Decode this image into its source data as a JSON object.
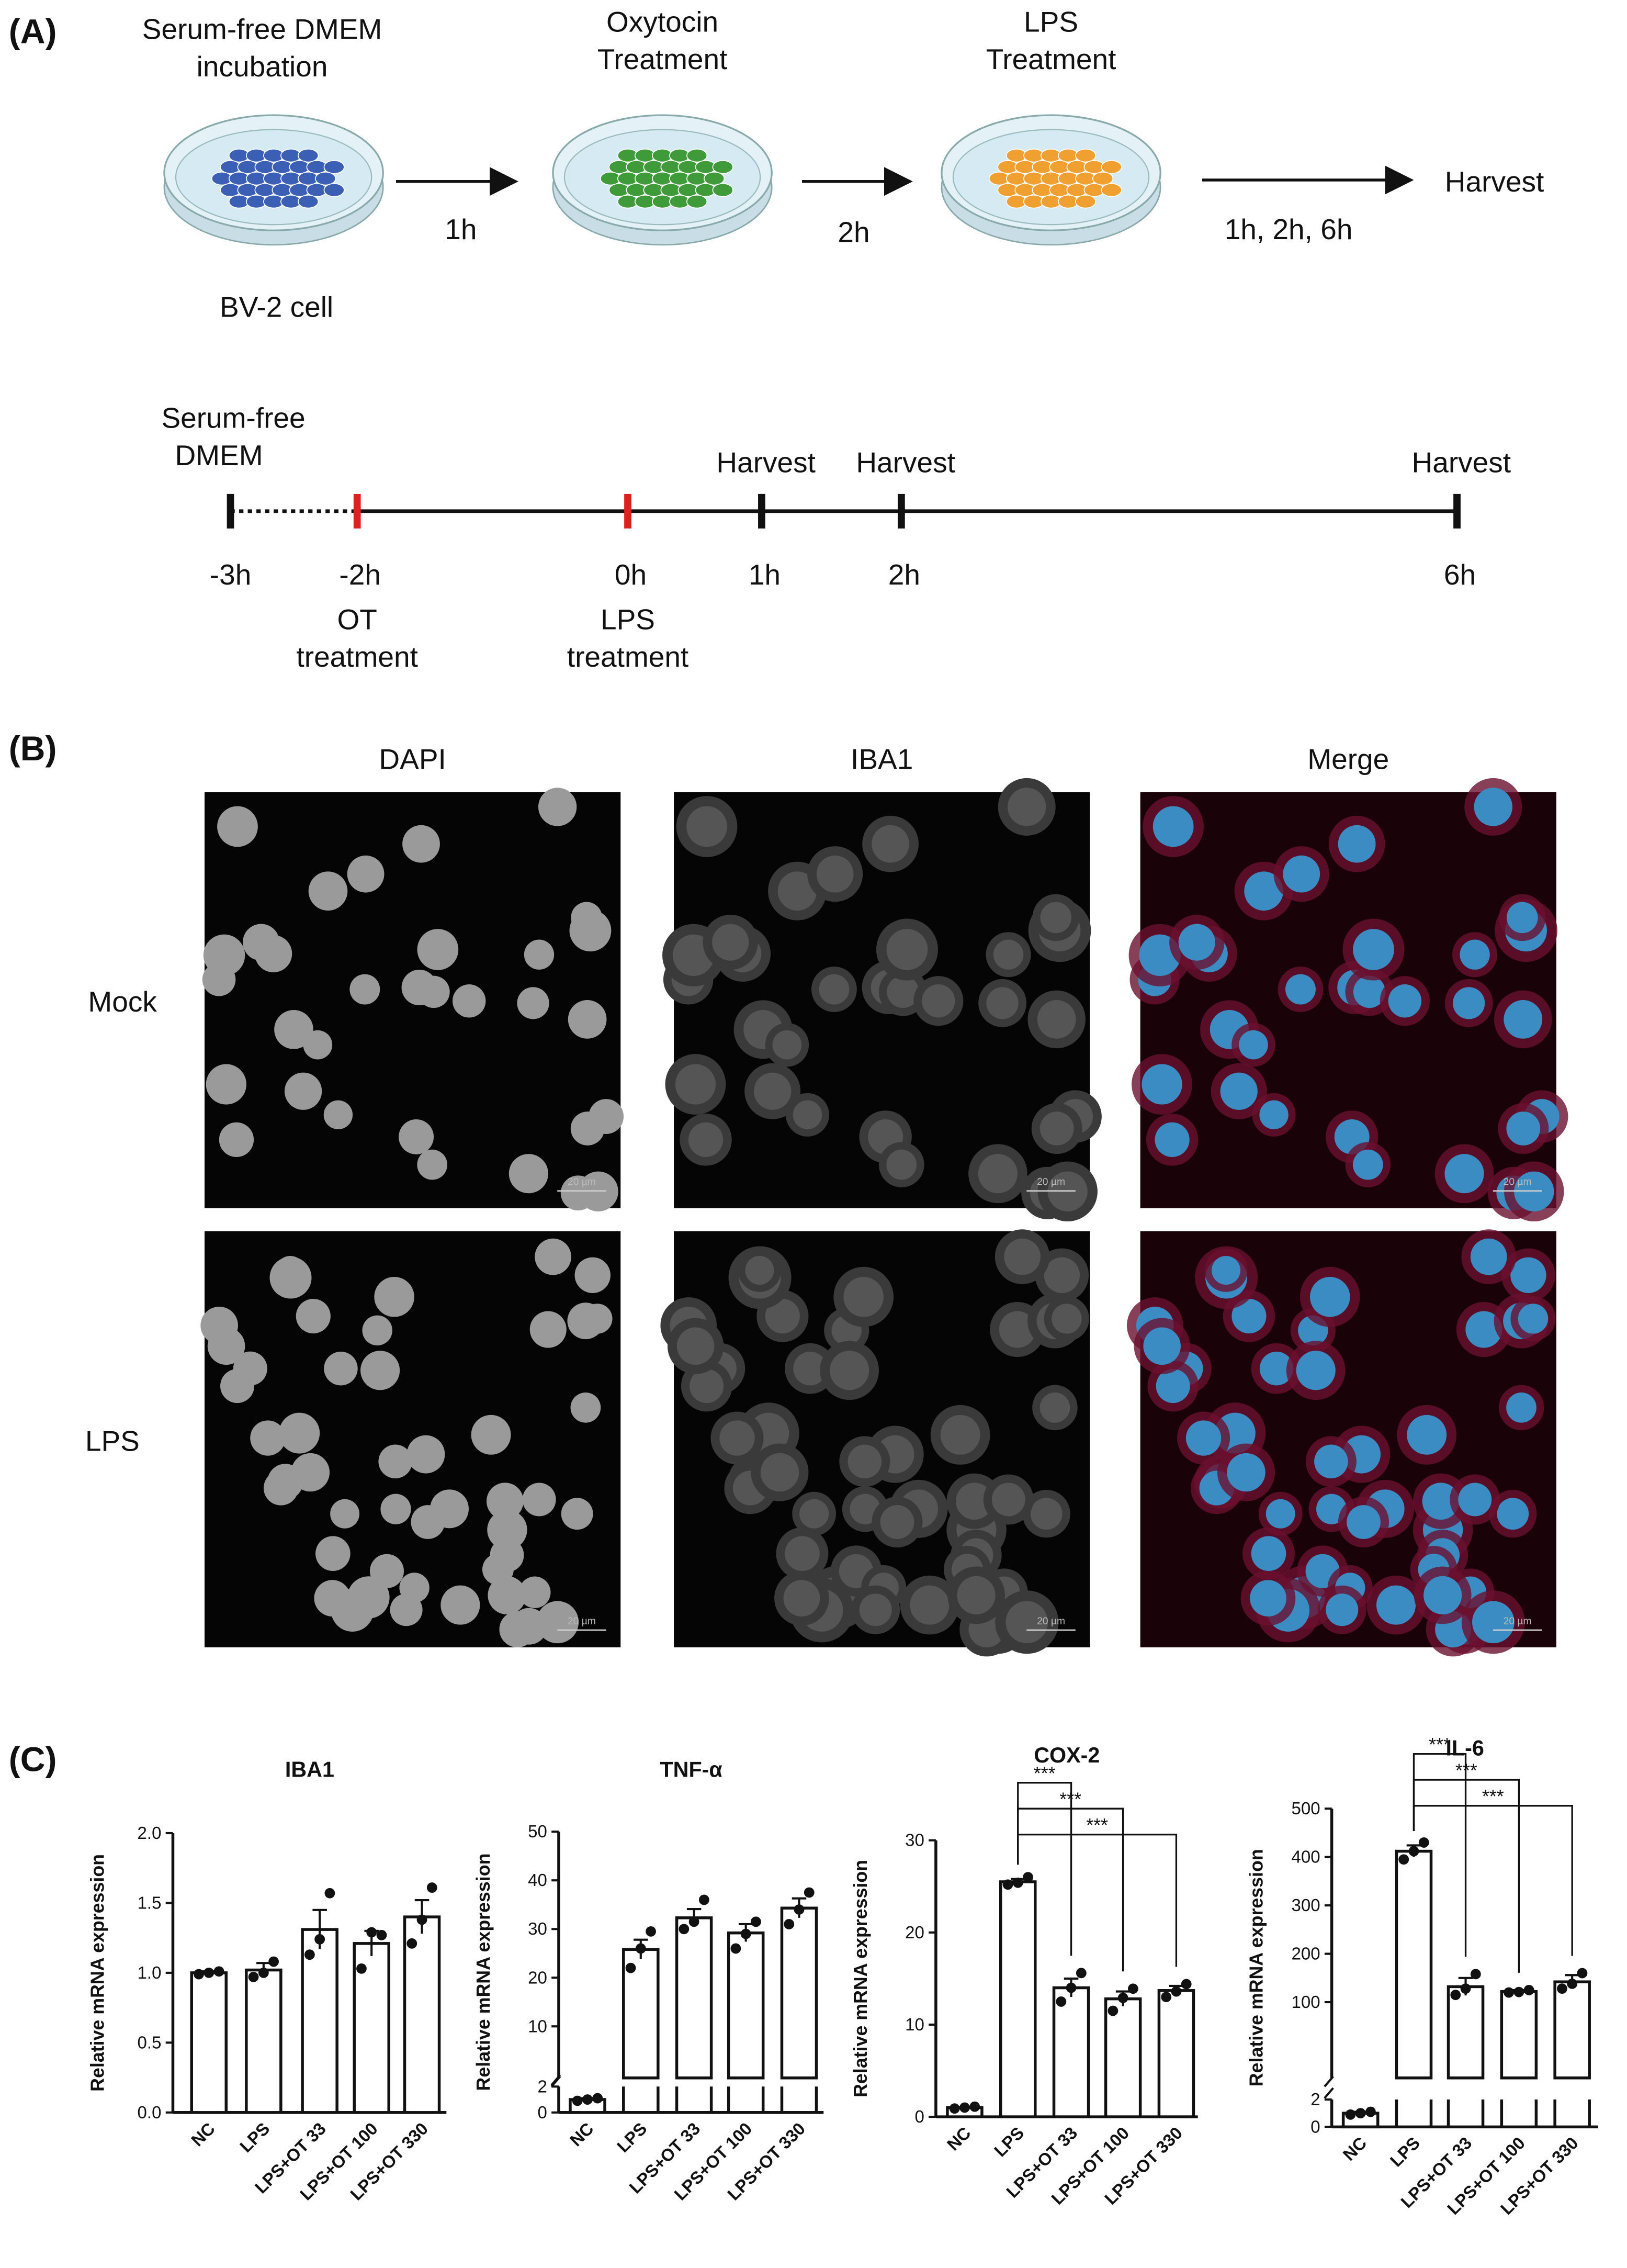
{
  "panel_a": {
    "label": "(A)",
    "steps": [
      {
        "lines": [
          "Serum-free DMEM",
          "incubation"
        ],
        "caption": "BV-2 cell",
        "color": "#3b5fb5"
      },
      {
        "lines": [
          "Oxytocin",
          "Treatment"
        ],
        "color": "#3f9a3a"
      },
      {
        "lines": [
          "LPS",
          "Treatment"
        ],
        "color": "#f0a030"
      }
    ],
    "arrows": [
      "1h",
      "2h",
      "1h, 2h, 6h"
    ],
    "end": "Harvest",
    "timeline": {
      "start": [
        "Serum-free",
        "DMEM"
      ],
      "ticks": [
        {
          "time": "-3h",
          "color": "#111111"
        },
        {
          "time": "-2h",
          "color": "#e02020",
          "below": [
            "OT",
            "treatment"
          ]
        },
        {
          "time": "0h",
          "color": "#e02020",
          "below": [
            "LPS",
            "treatment"
          ]
        },
        {
          "time": "1h",
          "color": "#111111",
          "above": "Harvest"
        },
        {
          "time": "2h",
          "color": "#111111",
          "above": "Harvest"
        },
        {
          "time": "6h",
          "color": "#111111",
          "above": "Harvest"
        }
      ]
    }
  },
  "panel_b": {
    "label": "(B)",
    "columns": [
      "DAPI",
      "IBA1",
      "Merge"
    ],
    "rows": [
      "Mock",
      "LPS"
    ],
    "scale_bar": "20 µm"
  },
  "panel_c": {
    "label": "(C)"
  },
  "chart_data": [
    {
      "type": "bar",
      "title": "IBA1",
      "ylabel": "Relative mRNA expression",
      "categories": [
        "NC",
        "LPS",
        "LPS+OT 33",
        "LPS+OT 100",
        "LPS+OT 330"
      ],
      "values": [
        1.0,
        1.02,
        1.31,
        1.21,
        1.4
      ],
      "errors": [
        0.01,
        0.05,
        0.14,
        0.09,
        0.12
      ],
      "points": [
        [
          0.99,
          1.0,
          1.01
        ],
        [
          0.97,
          1.0,
          1.08
        ],
        [
          1.13,
          1.24,
          1.57
        ],
        [
          1.03,
          1.29,
          1.27
        ],
        [
          1.21,
          1.38,
          1.61
        ]
      ],
      "ylim": [
        0,
        2
      ],
      "yticks": [
        {
          "value": 0,
          "label": "0.0"
        },
        {
          "value": 0.5,
          "label": "0.5"
        },
        {
          "value": 1,
          "label": "1.0"
        },
        {
          "value": 1.5,
          "label": "1.5"
        },
        {
          "value": 2,
          "label": "2.0"
        }
      ]
    },
    {
      "type": "bar",
      "title": "TNF-α",
      "ylabel": "Relative mRNA expression",
      "categories": [
        "NC",
        "LPS",
        "LPS+OT 33",
        "LPS+OT 100",
        "LPS+OT 330"
      ],
      "values": [
        1.0,
        25.8,
        32.3,
        29.2,
        34.3
      ],
      "errors": [
        0.1,
        2.0,
        1.8,
        1.8,
        2.0
      ],
      "points": [
        [
          0.9,
          1.0,
          1.1
        ],
        [
          22,
          26,
          29.5
        ],
        [
          30,
          31.5,
          36
        ],
        [
          26,
          29,
          31.5
        ],
        [
          31,
          34,
          37.5
        ]
      ],
      "ylim": [
        0,
        50
      ],
      "yticks": [
        10,
        20,
        30,
        40,
        50
      ],
      "lower_ylim": [
        0,
        2
      ],
      "lower_yticks": [
        0,
        2
      ]
    },
    {
      "type": "bar",
      "title": "COX-2",
      "ylabel": "Relative mRNA expression",
      "categories": [
        "NC",
        "LPS",
        "LPS+OT 33",
        "LPS+OT 100",
        "LPS+OT 330"
      ],
      "values": [
        1.0,
        25.5,
        14.0,
        12.8,
        13.7
      ],
      "errors": [
        0.05,
        0.3,
        1.0,
        0.8,
        0.5
      ],
      "points": [
        [
          0.9,
          1.0,
          1.1
        ],
        [
          25.2,
          25.4,
          26.0
        ],
        [
          12.5,
          14,
          15.6
        ],
        [
          11.5,
          12.9,
          13.9
        ],
        [
          13,
          13.6,
          14.4
        ]
      ],
      "ylim": [
        0,
        30
      ],
      "yticks": [
        0,
        10,
        20,
        30
      ],
      "significance": [
        {
          "groups": [
            "LPS",
            "LPS+OT 33"
          ],
          "label": "***"
        },
        {
          "groups": [
            "LPS",
            "LPS+OT 100"
          ],
          "label": "***"
        },
        {
          "groups": [
            "LPS",
            "LPS+OT 330"
          ],
          "label": "***"
        }
      ]
    },
    {
      "type": "bar",
      "title": "IL-6",
      "ylabel": "Relative mRNA expression",
      "categories": [
        "NC",
        "LPS",
        "LPS+OT 33",
        "LPS+OT 100",
        "LPS+OT 330"
      ],
      "values": [
        1.0,
        412,
        132,
        122,
        142
      ],
      "errors": [
        0.1,
        12,
        18,
        3,
        14
      ],
      "points": [
        [
          0.9,
          1.0,
          1.1
        ],
        [
          395,
          412,
          430
        ],
        [
          115,
          128,
          158
        ],
        [
          120,
          121,
          125
        ],
        [
          128,
          138,
          160
        ]
      ],
      "ylim": [
        0,
        500
      ],
      "yticks": [
        100,
        200,
        300,
        400,
        500
      ],
      "lower_ylim": [
        0,
        2
      ],
      "lower_yticks": [
        0,
        2
      ],
      "significance": [
        {
          "groups": [
            "LPS",
            "LPS+OT 33"
          ],
          "label": "***"
        },
        {
          "groups": [
            "LPS",
            "LPS+OT 100"
          ],
          "label": "***"
        },
        {
          "groups": [
            "LPS",
            "LPS+OT 330"
          ],
          "label": "***"
        }
      ]
    }
  ]
}
